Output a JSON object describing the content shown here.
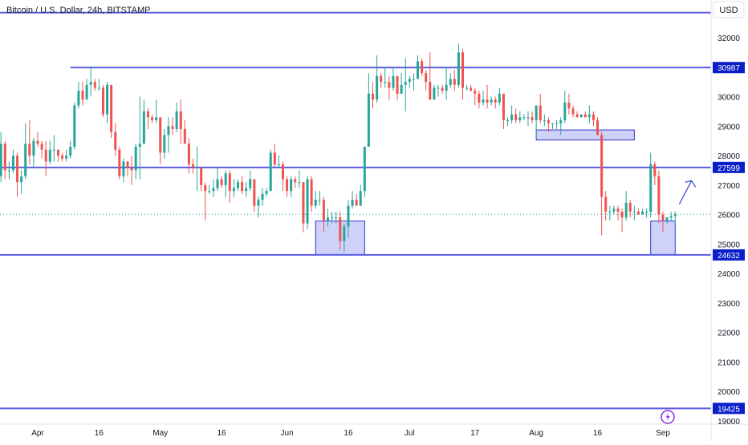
{
  "chart_data": {
    "type": "candlestick",
    "title": "Bitcoin / U.S. Dollar, 24h, BITSTAMP",
    "currency": "USD",
    "ylim": [
      19000,
      32600
    ],
    "y_ticks": [
      19000,
      20000,
      21000,
      22000,
      23000,
      24000,
      25000,
      26000,
      27000,
      28000,
      29000,
      30000,
      31000,
      32000
    ],
    "x_ticks": [
      {
        "label": "Apr",
        "date": "2023-04-01"
      },
      {
        "label": "16",
        "date": "2023-04-16"
      },
      {
        "label": "May",
        "date": "2023-05-01"
      },
      {
        "label": "16",
        "date": "2023-05-16"
      },
      {
        "label": "Jun",
        "date": "2023-06-01"
      },
      {
        "label": "16",
        "date": "2023-06-16"
      },
      {
        "label": "Jul",
        "date": "2023-07-01"
      },
      {
        "label": "17",
        "date": "2023-07-17"
      },
      {
        "label": "Aug",
        "date": "2023-08-01"
      },
      {
        "label": "16",
        "date": "2023-08-16"
      },
      {
        "label": "Sep",
        "date": "2023-09-01"
      }
    ],
    "levels": [
      {
        "value": 30987,
        "label": "30987",
        "start_date": "2023-04-09"
      },
      {
        "value": 27599,
        "label": "27599",
        "start_date": null
      },
      {
        "value": 24632,
        "label": "24632",
        "start_date": null
      },
      {
        "value": 19425,
        "label": "19425",
        "start_date": null
      }
    ],
    "top_level": 32850,
    "last_price": 26010,
    "zones": [
      {
        "date_start": "2023-06-08",
        "date_end": "2023-06-20",
        "low": 24632,
        "high": 25780
      },
      {
        "date_start": "2023-08-01",
        "date_end": "2023-08-25",
        "low": 28530,
        "high": 28870
      },
      {
        "date_start": "2023-08-29",
        "date_end": "2023-09-04",
        "low": 24632,
        "high": 25780
      }
    ],
    "arrow": {
      "from": {
        "date": "2023-09-05",
        "value": 26350
      },
      "to": {
        "date": "2023-09-08",
        "value": 27150
      }
    },
    "colors": {
      "up": "#26a69a",
      "down": "#ef5350",
      "level": "#5b5be6",
      "zone_fill": "#b3b8f5",
      "zone_stroke": "#3333cc",
      "arrow": "#3344cc",
      "price_dots": "#26a69a",
      "badge": "#8a2be2"
    },
    "ohlc": [
      [
        "2023-03-20",
        27700,
        28400,
        27000,
        28100
      ],
      [
        "2023-03-21",
        28100,
        28500,
        27200,
        28300
      ],
      [
        "2023-03-22",
        28300,
        28700,
        26700,
        27300
      ],
      [
        "2023-03-23",
        27300,
        28800,
        27100,
        28400
      ],
      [
        "2023-03-24",
        28400,
        28500,
        27200,
        27500
      ],
      [
        "2023-03-25",
        27500,
        27800,
        27200,
        27500
      ],
      [
        "2023-03-26",
        27500,
        28200,
        27400,
        28000
      ],
      [
        "2023-03-27",
        28000,
        28100,
        26600,
        27100
      ],
      [
        "2023-03-28",
        27100,
        27500,
        26700,
        27300
      ],
      [
        "2023-03-29",
        27300,
        29100,
        27200,
        28400
      ],
      [
        "2023-03-30",
        28400,
        29200,
        27700,
        28000
      ],
      [
        "2023-03-31",
        28000,
        28600,
        27600,
        28500
      ],
      [
        "2023-04-01",
        28500,
        28800,
        28300,
        28400
      ],
      [
        "2023-04-02",
        28400,
        28500,
        27900,
        28200
      ],
      [
        "2023-04-03",
        28200,
        28500,
        27300,
        27800
      ],
      [
        "2023-04-04",
        27800,
        28500,
        27700,
        28200
      ],
      [
        "2023-04-05",
        28200,
        28700,
        27800,
        28200
      ],
      [
        "2023-04-06",
        28200,
        28200,
        27800,
        28000
      ],
      [
        "2023-04-07",
        28000,
        28100,
        27800,
        27900
      ],
      [
        "2023-04-08",
        27900,
        28200,
        27800,
        28000
      ],
      [
        "2023-04-09",
        28000,
        28500,
        27900,
        28300
      ],
      [
        "2023-04-10",
        28300,
        29800,
        28200,
        29700
      ],
      [
        "2023-04-11",
        29700,
        30500,
        29600,
        30200
      ],
      [
        "2023-04-12",
        30200,
        30500,
        29700,
        29900
      ],
      [
        "2023-04-13",
        29900,
        30600,
        29900,
        30400
      ],
      [
        "2023-04-14",
        30400,
        31000,
        30000,
        30500
      ],
      [
        "2023-04-15",
        30500,
        30600,
        30200,
        30300
      ],
      [
        "2023-04-16",
        30300,
        30600,
        30200,
        30300
      ],
      [
        "2023-04-17",
        30300,
        30400,
        29300,
        29400
      ],
      [
        "2023-04-18",
        29400,
        30500,
        29100,
        30400
      ],
      [
        "2023-04-19",
        30400,
        30400,
        28600,
        28800
      ],
      [
        "2023-04-20",
        28800,
        29100,
        28000,
        28200
      ],
      [
        "2023-04-21",
        28200,
        28300,
        27200,
        27300
      ],
      [
        "2023-04-22",
        27300,
        27900,
        27100,
        27800
      ],
      [
        "2023-04-23",
        27800,
        27800,
        27300,
        27600
      ],
      [
        "2023-04-24",
        27600,
        28000,
        27000,
        27500
      ],
      [
        "2023-04-25",
        27500,
        28400,
        27200,
        28300
      ],
      [
        "2023-04-26",
        28300,
        30000,
        27200,
        28400
      ],
      [
        "2023-04-27",
        28400,
        29900,
        28400,
        29500
      ],
      [
        "2023-04-28",
        29500,
        29600,
        28900,
        29300
      ],
      [
        "2023-04-29",
        29300,
        29400,
        29100,
        29200
      ],
      [
        "2023-04-30",
        29200,
        29900,
        29100,
        29300
      ],
      [
        "2023-05-01",
        29300,
        29300,
        27700,
        28100
      ],
      [
        "2023-05-02",
        28100,
        28900,
        27900,
        28700
      ],
      [
        "2023-05-03",
        28700,
        29300,
        28100,
        29000
      ],
      [
        "2023-05-04",
        29000,
        29300,
        28700,
        28900
      ],
      [
        "2023-05-05",
        28900,
        29800,
        28800,
        29500
      ],
      [
        "2023-05-06",
        29500,
        29900,
        28400,
        28900
      ],
      [
        "2023-05-07",
        28900,
        29200,
        28400,
        28400
      ],
      [
        "2023-05-08",
        28400,
        28600,
        27400,
        27700
      ],
      [
        "2023-05-09",
        27700,
        27900,
        27400,
        27600
      ],
      [
        "2023-05-10",
        27600,
        28300,
        26800,
        27600
      ],
      [
        "2023-05-11",
        27600,
        27600,
        26800,
        27000
      ],
      [
        "2023-05-12",
        27000,
        27100,
        25800,
        26800
      ],
      [
        "2023-05-13",
        26800,
        27000,
        26700,
        26800
      ],
      [
        "2023-05-14",
        26800,
        27200,
        26600,
        26900
      ],
      [
        "2023-05-15",
        26900,
        27600,
        26800,
        27200
      ],
      [
        "2023-05-16",
        27200,
        27300,
        26900,
        27000
      ],
      [
        "2023-05-17",
        27000,
        27500,
        26600,
        27400
      ],
      [
        "2023-05-18",
        27400,
        27500,
        26400,
        26800
      ],
      [
        "2023-05-19",
        26800,
        27200,
        26600,
        26900
      ],
      [
        "2023-05-20",
        26900,
        27200,
        26800,
        27100
      ],
      [
        "2023-05-21",
        27100,
        27300,
        26700,
        26800
      ],
      [
        "2023-05-22",
        26800,
        27100,
        26600,
        26900
      ],
      [
        "2023-05-23",
        26900,
        27500,
        26800,
        27200
      ],
      [
        "2023-05-24",
        27200,
        27200,
        26100,
        26300
      ],
      [
        "2023-05-25",
        26300,
        26600,
        25900,
        26500
      ],
      [
        "2023-05-26",
        26500,
        26900,
        26300,
        26700
      ],
      [
        "2023-05-27",
        26700,
        26900,
        26600,
        26800
      ],
      [
        "2023-05-28",
        26800,
        28200,
        26800,
        28100
      ],
      [
        "2023-05-29",
        28100,
        28400,
        27600,
        27700
      ],
      [
        "2023-05-30",
        27700,
        28000,
        27600,
        27700
      ],
      [
        "2023-05-31",
        27700,
        27800,
        26800,
        27200
      ],
      [
        "2023-06-01",
        27200,
        27300,
        26600,
        26800
      ],
      [
        "2023-06-02",
        26800,
        27300,
        26600,
        27200
      ],
      [
        "2023-06-03",
        27200,
        27300,
        26900,
        27100
      ],
      [
        "2023-06-04",
        27100,
        27500,
        26900,
        27100
      ],
      [
        "2023-06-05",
        27100,
        27100,
        25400,
        25700
      ],
      [
        "2023-06-06",
        25700,
        27300,
        25500,
        27200
      ],
      [
        "2023-06-07",
        27200,
        27300,
        26100,
        26300
      ],
      [
        "2023-06-08",
        26300,
        26800,
        26200,
        26500
      ],
      [
        "2023-06-09",
        26500,
        26800,
        26300,
        26500
      ],
      [
        "2023-06-10",
        26500,
        26600,
        25400,
        25800
      ],
      [
        "2023-06-11",
        25800,
        26200,
        25600,
        25900
      ],
      [
        "2023-06-12",
        25900,
        26100,
        25700,
        25900
      ],
      [
        "2023-06-13",
        25900,
        26100,
        25700,
        25900
      ],
      [
        "2023-06-14",
        25900,
        26100,
        24800,
        25100
      ],
      [
        "2023-06-15",
        25100,
        25700,
        24750,
        25600
      ],
      [
        "2023-06-16",
        25600,
        26500,
        25200,
        26300
      ],
      [
        "2023-06-17",
        26300,
        26800,
        26200,
        26500
      ],
      [
        "2023-06-18",
        26500,
        26700,
        26300,
        26300
      ],
      [
        "2023-06-19",
        26300,
        27000,
        26300,
        26800
      ],
      [
        "2023-06-20",
        26800,
        28300,
        26600,
        28300
      ],
      [
        "2023-06-21",
        28300,
        30800,
        28300,
        30100
      ],
      [
        "2023-06-22",
        30100,
        30500,
        29600,
        29900
      ],
      [
        "2023-06-23",
        29900,
        31400,
        29800,
        30700
      ],
      [
        "2023-06-24",
        30700,
        30800,
        30300,
        30500
      ],
      [
        "2023-06-25",
        30500,
        31000,
        30300,
        30500
      ],
      [
        "2023-06-26",
        30500,
        30700,
        29900,
        30300
      ],
      [
        "2023-06-27",
        30300,
        31000,
        30200,
        30700
      ],
      [
        "2023-06-28",
        30700,
        30700,
        29900,
        30100
      ],
      [
        "2023-06-29",
        30100,
        30800,
        30100,
        30400
      ],
      [
        "2023-06-30",
        30400,
        31300,
        29500,
        30500
      ],
      [
        "2023-07-01",
        30500,
        30700,
        30300,
        30600
      ],
      [
        "2023-07-02",
        30600,
        30800,
        30200,
        30600
      ],
      [
        "2023-07-03",
        30600,
        31400,
        30600,
        31200
      ],
      [
        "2023-07-04",
        31200,
        31300,
        30700,
        30800
      ],
      [
        "2023-07-05",
        30800,
        30900,
        30200,
        30500
      ],
      [
        "2023-07-06",
        30500,
        31500,
        29900,
        29900
      ],
      [
        "2023-07-07",
        29900,
        30400,
        29900,
        30300
      ],
      [
        "2023-07-08",
        30300,
        30400,
        30000,
        30300
      ],
      [
        "2023-07-09",
        30300,
        30400,
        30100,
        30200
      ],
      [
        "2023-07-10",
        30200,
        31000,
        29900,
        30400
      ],
      [
        "2023-07-11",
        30400,
        30800,
        30300,
        30600
      ],
      [
        "2023-07-12",
        30600,
        30900,
        30200,
        30400
      ],
      [
        "2023-07-13",
        30400,
        31800,
        30300,
        31500
      ],
      [
        "2023-07-14",
        31500,
        31600,
        29900,
        30300
      ],
      [
        "2023-07-15",
        30300,
        30400,
        30200,
        30300
      ],
      [
        "2023-07-16",
        30300,
        30400,
        30200,
        30200
      ],
      [
        "2023-07-17",
        30200,
        30300,
        29700,
        30100
      ],
      [
        "2023-07-18",
        30100,
        30200,
        29600,
        29800
      ],
      [
        "2023-07-19",
        29800,
        30200,
        29700,
        29900
      ],
      [
        "2023-07-20",
        29900,
        30400,
        29600,
        29800
      ],
      [
        "2023-07-21",
        29800,
        30000,
        29700,
        29900
      ],
      [
        "2023-07-22",
        29900,
        30000,
        29600,
        29800
      ],
      [
        "2023-07-23",
        29800,
        30300,
        29700,
        30100
      ],
      [
        "2023-07-24",
        30100,
        30100,
        28900,
        29200
      ],
      [
        "2023-07-25",
        29200,
        29300,
        29000,
        29200
      ],
      [
        "2023-07-26",
        29200,
        29700,
        29100,
        29400
      ],
      [
        "2023-07-27",
        29400,
        29600,
        29100,
        29200
      ],
      [
        "2023-07-28",
        29200,
        29500,
        29100,
        29300
      ],
      [
        "2023-07-29",
        29300,
        29400,
        29200,
        29300
      ],
      [
        "2023-07-30",
        29300,
        29500,
        29000,
        29300
      ],
      [
        "2023-07-31",
        29300,
        29500,
        29100,
        29200
      ],
      [
        "2023-08-01",
        29200,
        29700,
        28600,
        29700
      ],
      [
        "2023-08-02",
        29700,
        30100,
        29100,
        29200
      ],
      [
        "2023-08-03",
        29200,
        29400,
        29000,
        29200
      ],
      [
        "2023-08-04",
        29200,
        29300,
        28800,
        29100
      ],
      [
        "2023-08-05",
        29100,
        29100,
        28900,
        29100
      ],
      [
        "2023-08-06",
        29100,
        29200,
        28900,
        29100
      ],
      [
        "2023-08-07",
        29100,
        29300,
        28700,
        29200
      ],
      [
        "2023-08-08",
        29200,
        30200,
        29100,
        29800
      ],
      [
        "2023-08-09",
        29800,
        30100,
        29400,
        29600
      ],
      [
        "2023-08-10",
        29600,
        29700,
        29300,
        29400
      ],
      [
        "2023-08-11",
        29400,
        29500,
        29300,
        29300
      ],
      [
        "2023-08-12",
        29300,
        29400,
        29300,
        29400
      ],
      [
        "2023-08-13",
        29400,
        29500,
        29300,
        29300
      ],
      [
        "2023-08-14",
        29300,
        29700,
        29100,
        29400
      ],
      [
        "2023-08-15",
        29400,
        29500,
        29000,
        29200
      ],
      [
        "2023-08-16",
        29200,
        29300,
        28700,
        28700
      ],
      [
        "2023-08-17",
        28700,
        28800,
        25300,
        26600
      ],
      [
        "2023-08-18",
        26600,
        26800,
        25800,
        26100
      ],
      [
        "2023-08-19",
        26100,
        26300,
        25800,
        26100
      ],
      [
        "2023-08-20",
        26100,
        26300,
        26000,
        26200
      ],
      [
        "2023-08-21",
        26200,
        26300,
        25800,
        26100
      ],
      [
        "2023-08-22",
        26100,
        26200,
        25400,
        25900
      ],
      [
        "2023-08-23",
        25900,
        26800,
        25800,
        26400
      ],
      [
        "2023-08-24",
        26400,
        26500,
        25900,
        26100
      ],
      [
        "2023-08-25",
        26100,
        26300,
        25800,
        26100
      ],
      [
        "2023-08-26",
        26100,
        26200,
        26000,
        26000
      ],
      [
        "2023-08-27",
        26000,
        26200,
        26000,
        26100
      ],
      [
        "2023-08-28",
        26100,
        26200,
        25900,
        26100
      ],
      [
        "2023-08-29",
        26100,
        28100,
        25900,
        27700
      ],
      [
        "2023-08-30",
        27700,
        27800,
        27000,
        27300
      ],
      [
        "2023-08-31",
        27300,
        27500,
        25700,
        26000
      ],
      [
        "2023-09-01",
        26000,
        26100,
        25400,
        25800
      ],
      [
        "2023-09-02",
        25800,
        25900,
        25700,
        25900
      ],
      [
        "2023-09-03",
        25900,
        26100,
        25800,
        25950
      ],
      [
        "2023-09-04",
        25950,
        26100,
        25700,
        26010
      ]
    ]
  }
}
